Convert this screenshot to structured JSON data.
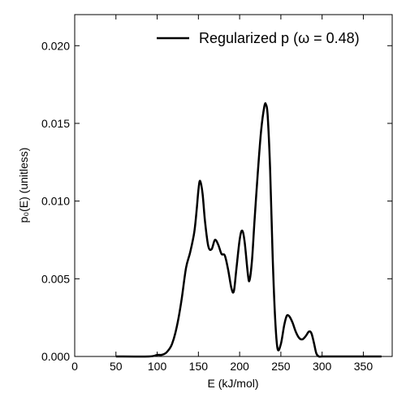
{
  "chart_data": {
    "type": "line",
    "title": "",
    "xlabel": "E (kJ/mol)",
    "ylabel": "p₀(E) (unitless)",
    "xlim": [
      0,
      385
    ],
    "ylim": [
      0,
      0.022
    ],
    "xticks": [
      0,
      50,
      100,
      150,
      200,
      250,
      300,
      350
    ],
    "xtick_labels": [
      "0",
      "50",
      "100",
      "150",
      "200",
      "250",
      "300",
      "350"
    ],
    "yticks": [
      0,
      0.005,
      0.01,
      0.015,
      0.02
    ],
    "ytick_labels": [
      "0.000",
      "0.005",
      "0.010",
      "0.015",
      "0.020"
    ],
    "grid": false,
    "legend_position": "top-right",
    "series": [
      {
        "name": "Regularized p (ω = 0.48)",
        "color": "#000000",
        "x": [
          50,
          90,
          100,
          105,
          110,
          115,
          118,
          122,
          126,
          130,
          135,
          140,
          145,
          148,
          150,
          152,
          155,
          158,
          162,
          166,
          170,
          174,
          178,
          182,
          186,
          190,
          193,
          196,
          200,
          203,
          206,
          210,
          212,
          215,
          218,
          222,
          226,
          230,
          232,
          234,
          237,
          240,
          243,
          246,
          250,
          254,
          257,
          260,
          264,
          268,
          272,
          276,
          280,
          284,
          287,
          290,
          293,
          296,
          300,
          320,
          350,
          372
        ],
        "y": [
          0,
          0,
          0.0001,
          0.0001,
          0.0002,
          0.0005,
          0.0008,
          0.0015,
          0.0025,
          0.0038,
          0.0057,
          0.0067,
          0.008,
          0.0095,
          0.0107,
          0.0113,
          0.0105,
          0.0087,
          0.0071,
          0.0069,
          0.0075,
          0.0072,
          0.0066,
          0.0065,
          0.0056,
          0.0044,
          0.0042,
          0.0056,
          0.0075,
          0.0081,
          0.0074,
          0.0053,
          0.0049,
          0.0062,
          0.0087,
          0.0118,
          0.0145,
          0.0161,
          0.0162,
          0.0155,
          0.012,
          0.0065,
          0.0025,
          0.0005,
          0.0008,
          0.002,
          0.0026,
          0.0026,
          0.0022,
          0.0016,
          0.0012,
          0.0011,
          0.0013,
          0.0016,
          0.0015,
          0.0009,
          0.0002,
          0,
          0,
          0,
          0,
          0
        ]
      }
    ]
  }
}
